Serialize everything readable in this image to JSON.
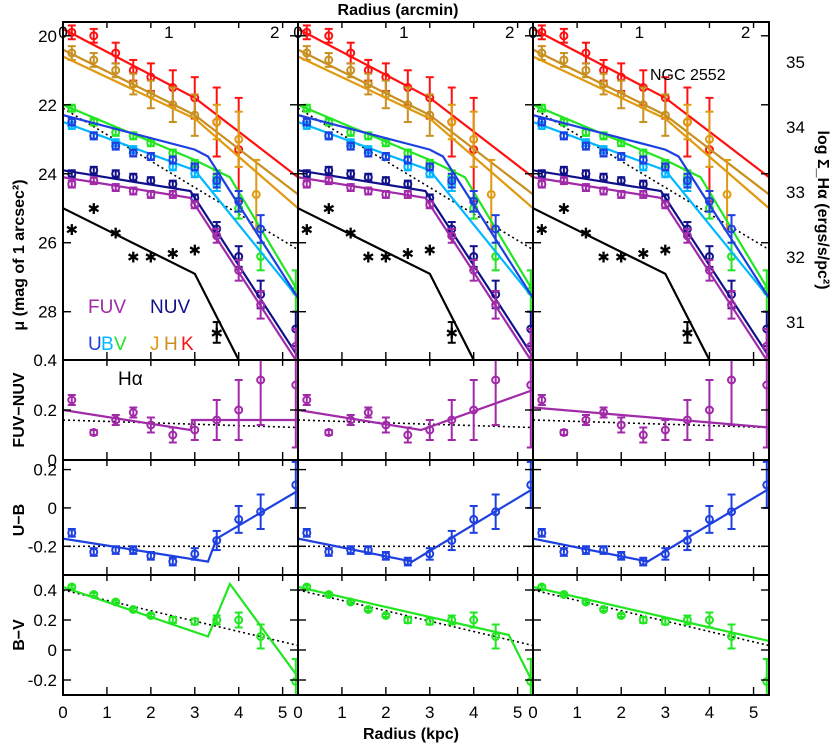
{
  "figure": {
    "top_axis_title": "Radius (arcmin)",
    "bottom_axis_title": "Radius (kpc)",
    "galaxy": "NGC 2552",
    "right_axis_title": "log Σ_Hα (ergs/s/pc²)",
    "left_titles": {
      "mu": "μ (mag of 1 arcsec²)",
      "fuv_nuv": "FUV−NUV",
      "u_b": "U−B",
      "b_v": "B−V"
    },
    "legend": [
      {
        "text": "FUV",
        "color": "#a02aa8"
      },
      {
        "text": "NUV",
        "color": "#10108a"
      },
      {
        "text": "U",
        "color": "#1e40e0"
      },
      {
        "text": "B",
        "color": "#00b8ff"
      },
      {
        "text": "V",
        "color": "#22e622"
      },
      {
        "text": "J",
        "color": "#e09a10"
      },
      {
        "text": "H",
        "color": "#c89020"
      },
      {
        "text": "K",
        "color": "#ff1010"
      },
      {
        "text": "Hα",
        "color": "#000000"
      }
    ]
  },
  "chart_data": {
    "type": "scatter",
    "columns": 3,
    "x_kpc_range": [
      0,
      5.35
    ],
    "x_arcmin_range": [
      0,
      2.22
    ],
    "x_ticks_kpc": [
      "0",
      "1",
      "2",
      "3",
      "4",
      "5"
    ],
    "x_ticks_arcmin": [
      "0",
      "1",
      "2"
    ],
    "panels": [
      {
        "id": "mu",
        "ylim": [
          29.4,
          19.6
        ],
        "y_ticks": [
          "20",
          "22",
          "24",
          "26",
          "28"
        ],
        "right_ticks": [
          "35",
          "34",
          "33",
          "32",
          "31"
        ],
        "series": [
          {
            "name": "K",
            "color": "#ff1010",
            "x": [
              0.2,
              0.7,
              1.2,
              1.6,
              2.0,
              2.5,
              3.0,
              3.5,
              4.0
            ],
            "y": [
              19.9,
              20.0,
              20.5,
              21.0,
              21.2,
              21.5,
              21.8,
              22.5,
              23.3
            ],
            "err": [
              0.2,
              0.2,
              0.3,
              0.3,
              0.4,
              0.5,
              0.6,
              1.0,
              1.5
            ],
            "fit": [
              [
                0,
                19.8
              ],
              [
                3.0,
                21.8
              ],
              [
                5.35,
                24.1
              ]
            ]
          },
          {
            "name": "H",
            "color": "#c89020",
            "x": [
              0.2,
              0.7,
              1.2,
              1.6,
              2.0,
              2.5,
              3.0
            ],
            "y": [
              20.5,
              20.7,
              21.0,
              21.4,
              21.7,
              22.0,
              22.3
            ],
            "err": [
              0.2,
              0.2,
              0.2,
              0.3,
              0.4,
              0.5,
              0.6
            ],
            "fit": [
              [
                0,
                20.4
              ],
              [
                3.0,
                22.3
              ],
              [
                5.35,
                24.6
              ]
            ]
          },
          {
            "name": "J",
            "color": "#e09a10",
            "x": [
              3.5,
              4.0,
              4.4
            ],
            "y": [
              22.5,
              23.0,
              24.6
            ],
            "err": [
              0.5,
              0.8,
              1.0
            ],
            "fit": [
              [
                0,
                20.6
              ],
              [
                3.0,
                22.4
              ],
              [
                5.35,
                25.0
              ]
            ]
          },
          {
            "name": "V",
            "color": "#22e622",
            "x": [
              0.2,
              0.7,
              1.2,
              1.6,
              2.0,
              2.5,
              3.0,
              3.5,
              4.0,
              4.5,
              5.3
            ],
            "y": [
              22.1,
              22.5,
              22.8,
              22.9,
              23.1,
              23.4,
              23.7,
              24.1,
              25.0,
              26.4,
              27.4
            ],
            "err": [
              0.1,
              0.1,
              0.1,
              0.1,
              0.1,
              0.1,
              0.1,
              0.2,
              0.3,
              0.4,
              0.6
            ],
            "fit": [
              [
                0,
                22.0
              ],
              [
                3.0,
                23.6
              ],
              [
                3.8,
                24.1
              ],
              [
                5.35,
                27.4
              ]
            ]
          },
          {
            "name": "B",
            "color": "#00b8ff",
            "x": [
              0.2,
              0.7,
              1.2,
              1.6,
              2.0,
              2.5,
              3.0,
              3.5
            ],
            "y": [
              22.6,
              22.9,
              23.1,
              23.3,
              23.5,
              23.8,
              24.0,
              24.3
            ],
            "err": [
              0.1,
              0.1,
              0.1,
              0.1,
              0.1,
              0.1,
              0.1,
              0.2
            ],
            "fit": [
              [
                0,
                22.5
              ],
              [
                3.0,
                23.9
              ],
              [
                5.35,
                27.6
              ]
            ]
          },
          {
            "name": "U",
            "color": "#1e40e0",
            "x": [
              0.2,
              0.7,
              1.2,
              1.6,
              2.0,
              2.5,
              3.0,
              3.5,
              4.0,
              4.5
            ],
            "y": [
              22.5,
              22.9,
              23.2,
              23.4,
              23.5,
              23.6,
              23.8,
              24.2,
              24.8,
              25.6
            ],
            "err": [
              0.1,
              0.1,
              0.1,
              0.1,
              0.1,
              0.1,
              0.1,
              0.2,
              0.3,
              0.4
            ],
            "fit": [
              [
                0,
                22.3
              ],
              [
                3.0,
                23.3
              ],
              [
                3.3,
                23.5
              ],
              [
                5.35,
                27.6
              ]
            ]
          },
          {
            "name": "NUV",
            "color": "#10108a",
            "x": [
              0.2,
              0.7,
              1.2,
              1.6,
              2.0,
              2.5,
              3.0,
              3.5,
              4.0,
              4.5,
              5.3
            ],
            "y": [
              24.0,
              23.9,
              24.0,
              24.1,
              24.2,
              24.3,
              24.7,
              25.6,
              26.4,
              27.5,
              28.5
            ],
            "err": [
              0.1,
              0.1,
              0.1,
              0.1,
              0.1,
              0.1,
              0.1,
              0.2,
              0.3,
              0.4,
              0.5
            ],
            "fit": [
              [
                0,
                23.9
              ],
              [
                2.9,
                24.5
              ],
              [
                5.35,
                29.3
              ]
            ]
          },
          {
            "name": "FUV",
            "color": "#a02aa8",
            "x": [
              0.2,
              0.7,
              1.2,
              1.6,
              2.0,
              2.5,
              3.0,
              3.5,
              4.0,
              4.5,
              5.3
            ],
            "y": [
              24.3,
              24.2,
              24.4,
              24.5,
              24.6,
              24.6,
              24.9,
              25.8,
              26.8,
              27.8,
              29.0
            ],
            "err": [
              0.1,
              0.1,
              0.1,
              0.1,
              0.1,
              0.1,
              0.1,
              0.2,
              0.3,
              0.4,
              0.5
            ],
            "fit": [
              [
                0,
                24.1
              ],
              [
                2.9,
                24.7
              ],
              [
                5.35,
                29.5
              ]
            ]
          },
          {
            "name": "Hα",
            "color": "#000000",
            "marker": "star",
            "x": [
              0.2,
              0.7,
              1.2,
              1.6,
              2.0,
              2.5,
              3.0,
              3.5
            ],
            "y": [
              25.6,
              25.0,
              25.7,
              26.4,
              26.4,
              26.3,
              26.2,
              28.6
            ],
            "err": [
              0,
              0,
              0,
              0,
              0,
              0,
              0,
              0.3
            ],
            "fit": [
              [
                0,
                25.0
              ],
              [
                3.0,
                26.9
              ],
              [
                4.0,
                29.4
              ]
            ]
          }
        ],
        "dotted_fit": [
          [
            0,
            22.1
          ],
          [
            5.35,
            26.2
          ]
        ]
      },
      {
        "id": "fuv_nuv",
        "ylim": [
          0,
          0.4
        ],
        "y_ticks": [
          "0",
          "0.2",
          "0.4"
        ],
        "color": "#a02aa8",
        "x": [
          0.2,
          0.7,
          1.2,
          1.6,
          2.0,
          2.5,
          3.0,
          3.5,
          4.0,
          4.5,
          5.3
        ],
        "y": [
          0.24,
          0.11,
          0.16,
          0.19,
          0.14,
          0.1,
          0.12,
          0.16,
          0.2,
          0.32,
          0.3
        ],
        "err": [
          0.02,
          0.01,
          0.02,
          0.02,
          0.03,
          0.03,
          0.04,
          0.08,
          0.12,
          0.18,
          0.25
        ],
        "fits": [
          [
            [
              0,
              0.2
            ],
            [
              2.9,
              0.12
            ],
            [
              2.95,
              0.16
            ],
            [
              5.35,
              0.16
            ]
          ],
          [
            [
              0,
              0.2
            ],
            [
              2.8,
              0.12
            ],
            [
              5.35,
              0.28
            ]
          ],
          [
            [
              0,
              0.21
            ],
            [
              5.35,
              0.13
            ]
          ]
        ],
        "dotted_fit": [
          [
            0,
            0.16
          ],
          [
            5.35,
            0.13
          ]
        ]
      },
      {
        "id": "u_b",
        "ylim": [
          -0.35,
          0.25
        ],
        "y_ticks": [
          "-0.2",
          "0",
          "0.2"
        ],
        "color": "#1e40e0",
        "x": [
          0.2,
          0.7,
          1.2,
          1.6,
          2.0,
          2.5,
          3.0,
          3.5,
          4.0,
          4.5,
          5.3
        ],
        "y": [
          -0.13,
          -0.23,
          -0.22,
          -0.22,
          -0.25,
          -0.28,
          -0.24,
          -0.17,
          -0.06,
          -0.02,
          0.12
        ],
        "err": [
          0.02,
          0.02,
          0.02,
          0.02,
          0.02,
          0.02,
          0.03,
          0.05,
          0.07,
          0.09,
          0.12
        ],
        "fits": [
          [
            [
              0,
              -0.16
            ],
            [
              3.3,
              -0.28
            ],
            [
              3.5,
              -0.16
            ],
            [
              5.35,
              0.09
            ]
          ],
          [
            [
              0,
              -0.16
            ],
            [
              2.6,
              -0.28
            ],
            [
              5.35,
              0.1
            ]
          ],
          [
            [
              0,
              -0.16
            ],
            [
              2.6,
              -0.28
            ],
            [
              5.35,
              0.1
            ]
          ]
        ],
        "dotted_fit": [
          [
            0,
            -0.2
          ],
          [
            5.35,
            -0.2
          ]
        ]
      },
      {
        "id": "b_v",
        "ylim": [
          -0.3,
          0.5
        ],
        "y_ticks": [
          "-0.2",
          "0",
          "0.2",
          "0.4"
        ],
        "color": "#22e622",
        "x": [
          0.2,
          0.7,
          1.2,
          1.6,
          2.0,
          2.5,
          3.0,
          3.5,
          4.0,
          4.5,
          5.3
        ],
        "y": [
          0.42,
          0.37,
          0.32,
          0.27,
          0.23,
          0.2,
          0.19,
          0.2,
          0.2,
          0.09,
          -0.21
        ],
        "err": [
          0.01,
          0.01,
          0.01,
          0.01,
          0.01,
          0.02,
          0.02,
          0.03,
          0.05,
          0.08,
          0.15
        ],
        "fits": [
          [
            [
              0,
              0.42
            ],
            [
              3.3,
              0.09
            ],
            [
              3.8,
              0.44
            ],
            [
              5.35,
              -0.18
            ]
          ],
          [
            [
              0,
              0.42
            ],
            [
              4.8,
              0.1
            ],
            [
              5.35,
              -0.22
            ]
          ],
          [
            [
              0,
              0.42
            ],
            [
              5.35,
              0.06
            ]
          ]
        ],
        "dotted_fit": [
          [
            0,
            0.4
          ],
          [
            5.35,
            0.03
          ]
        ]
      }
    ]
  }
}
